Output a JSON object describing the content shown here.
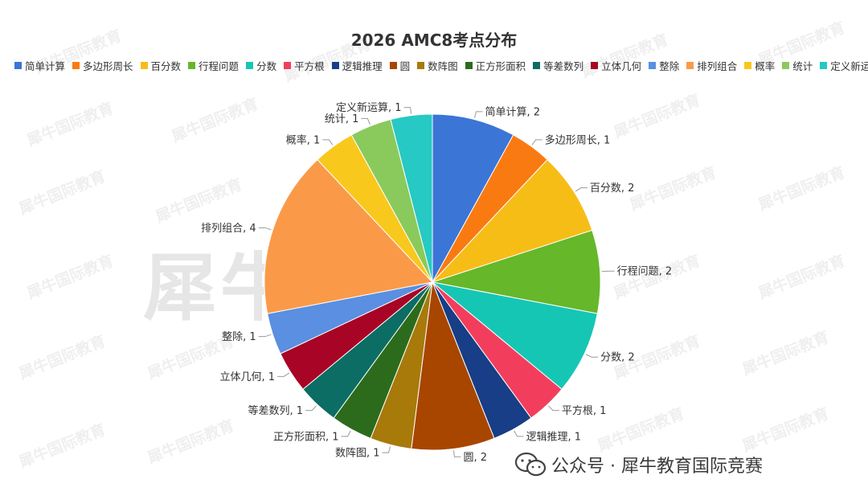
{
  "watermark_text": "犀牛国际教育",
  "footer": {
    "icon": "wechat-icon",
    "text": "公众号 · 犀牛教育国际竞赛"
  },
  "chart_data": {
    "type": "pie",
    "title": "2026 AMC8考点分布",
    "legend_position": "top",
    "slices": [
      {
        "label": "简单计算",
        "value": 2,
        "color": "#3B75D6"
      },
      {
        "label": "多边形周长",
        "value": 1,
        "color": "#FA7A12"
      },
      {
        "label": "百分数",
        "value": 2,
        "color": "#F7BD17"
      },
      {
        "label": "行程问题",
        "value": 2,
        "color": "#66B72A"
      },
      {
        "label": "分数",
        "value": 2,
        "color": "#16C6B5"
      },
      {
        "label": "平方根",
        "value": 1,
        "color": "#F23E5C"
      },
      {
        "label": "逻辑推理",
        "value": 1,
        "color": "#173E86"
      },
      {
        "label": "圆",
        "value": 2,
        "color": "#A84600"
      },
      {
        "label": "数阵图",
        "value": 1,
        "color": "#A77A0A"
      },
      {
        "label": "正方形面积",
        "value": 1,
        "color": "#2D6B1C"
      },
      {
        "label": "等差数列",
        "value": 1,
        "color": "#0B6D64"
      },
      {
        "label": "立体几何",
        "value": 1,
        "color": "#A80425"
      },
      {
        "label": "整除",
        "value": 1,
        "color": "#5A8FE1"
      },
      {
        "label": "排列组合",
        "value": 4,
        "color": "#FA9A48"
      },
      {
        "label": "概率",
        "value": 1,
        "color": "#F9C81C"
      },
      {
        "label": "统计",
        "value": 1,
        "color": "#8ACA5C"
      },
      {
        "label": "定义新运算",
        "value": 1,
        "color": "#26C9C3"
      }
    ]
  }
}
